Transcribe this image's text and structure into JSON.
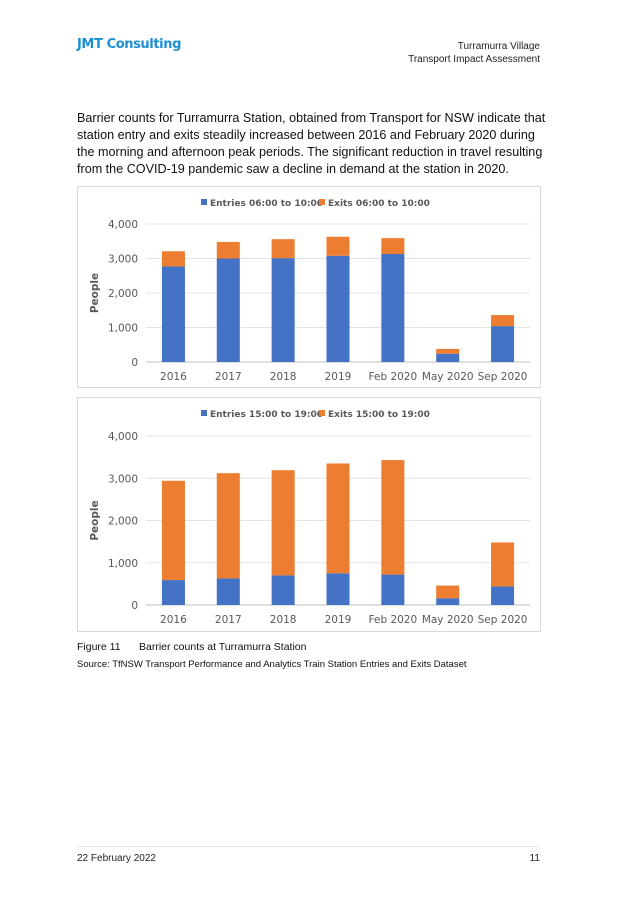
{
  "header": {
    "logo": "JMT Consulting",
    "project_line1": "Turramurra Village",
    "project_line2": "Transport Impact Assessment"
  },
  "body_text": "Barrier counts for Turramurra Station, obtained from Transport for NSW indicate that station entry and exits steadily increased between 2016 and February 2020 during the morning and afternoon peak periods. The significant reduction in travel resulting from the COVID-19 pandemic saw a decline in demand at the station in 2020.",
  "colors": {
    "entries": "#4472c4",
    "exits": "#ed7d31",
    "logo": "#1c8fd4"
  },
  "chart_data": [
    {
      "type": "bar",
      "stacked": true,
      "categories": [
        "2016",
        "2017",
        "2018",
        "2019",
        "Feb 2020",
        "May 2020",
        "Sep 2020"
      ],
      "series": [
        {
          "name": "Entries 06:00 to 10:00",
          "values": [
            2770,
            3000,
            3010,
            3080,
            3130,
            240,
            1040
          ]
        },
        {
          "name": "Exits 06:00 to 10:00",
          "values": [
            440,
            480,
            550,
            550,
            460,
            140,
            320
          ]
        }
      ],
      "ylabel": "People",
      "ylim": [
        0,
        4000
      ],
      "yticks": [
        "0",
        "1,000",
        "2,000",
        "3,000",
        "4,000"
      ],
      "legend": "top",
      "grid": true
    },
    {
      "type": "bar",
      "stacked": true,
      "categories": [
        "2016",
        "2017",
        "2018",
        "2019",
        "Feb 2020",
        "May 2020",
        "Sep 2020"
      ],
      "series": [
        {
          "name": "Entries 15:00 to 19:00",
          "values": [
            590,
            630,
            700,
            750,
            720,
            160,
            440
          ]
        },
        {
          "name": "Exits 15:00 to 19:00",
          "values": [
            2350,
            2490,
            2490,
            2600,
            2710,
            300,
            1040
          ]
        }
      ],
      "ylabel": "People",
      "ylim": [
        0,
        4000
      ],
      "yticks": [
        "0",
        "1,000",
        "2,000",
        "3,000",
        "4,000"
      ],
      "legend": "top",
      "grid": true
    }
  ],
  "figure": {
    "number": "Figure 11",
    "caption": "Barrier counts at Turramurra Station",
    "source": "Source: TfNSW Transport Performance and Analytics Train Station Entries and Exits Dataset"
  },
  "footer": {
    "date": "22 February 2022",
    "page": "11"
  }
}
